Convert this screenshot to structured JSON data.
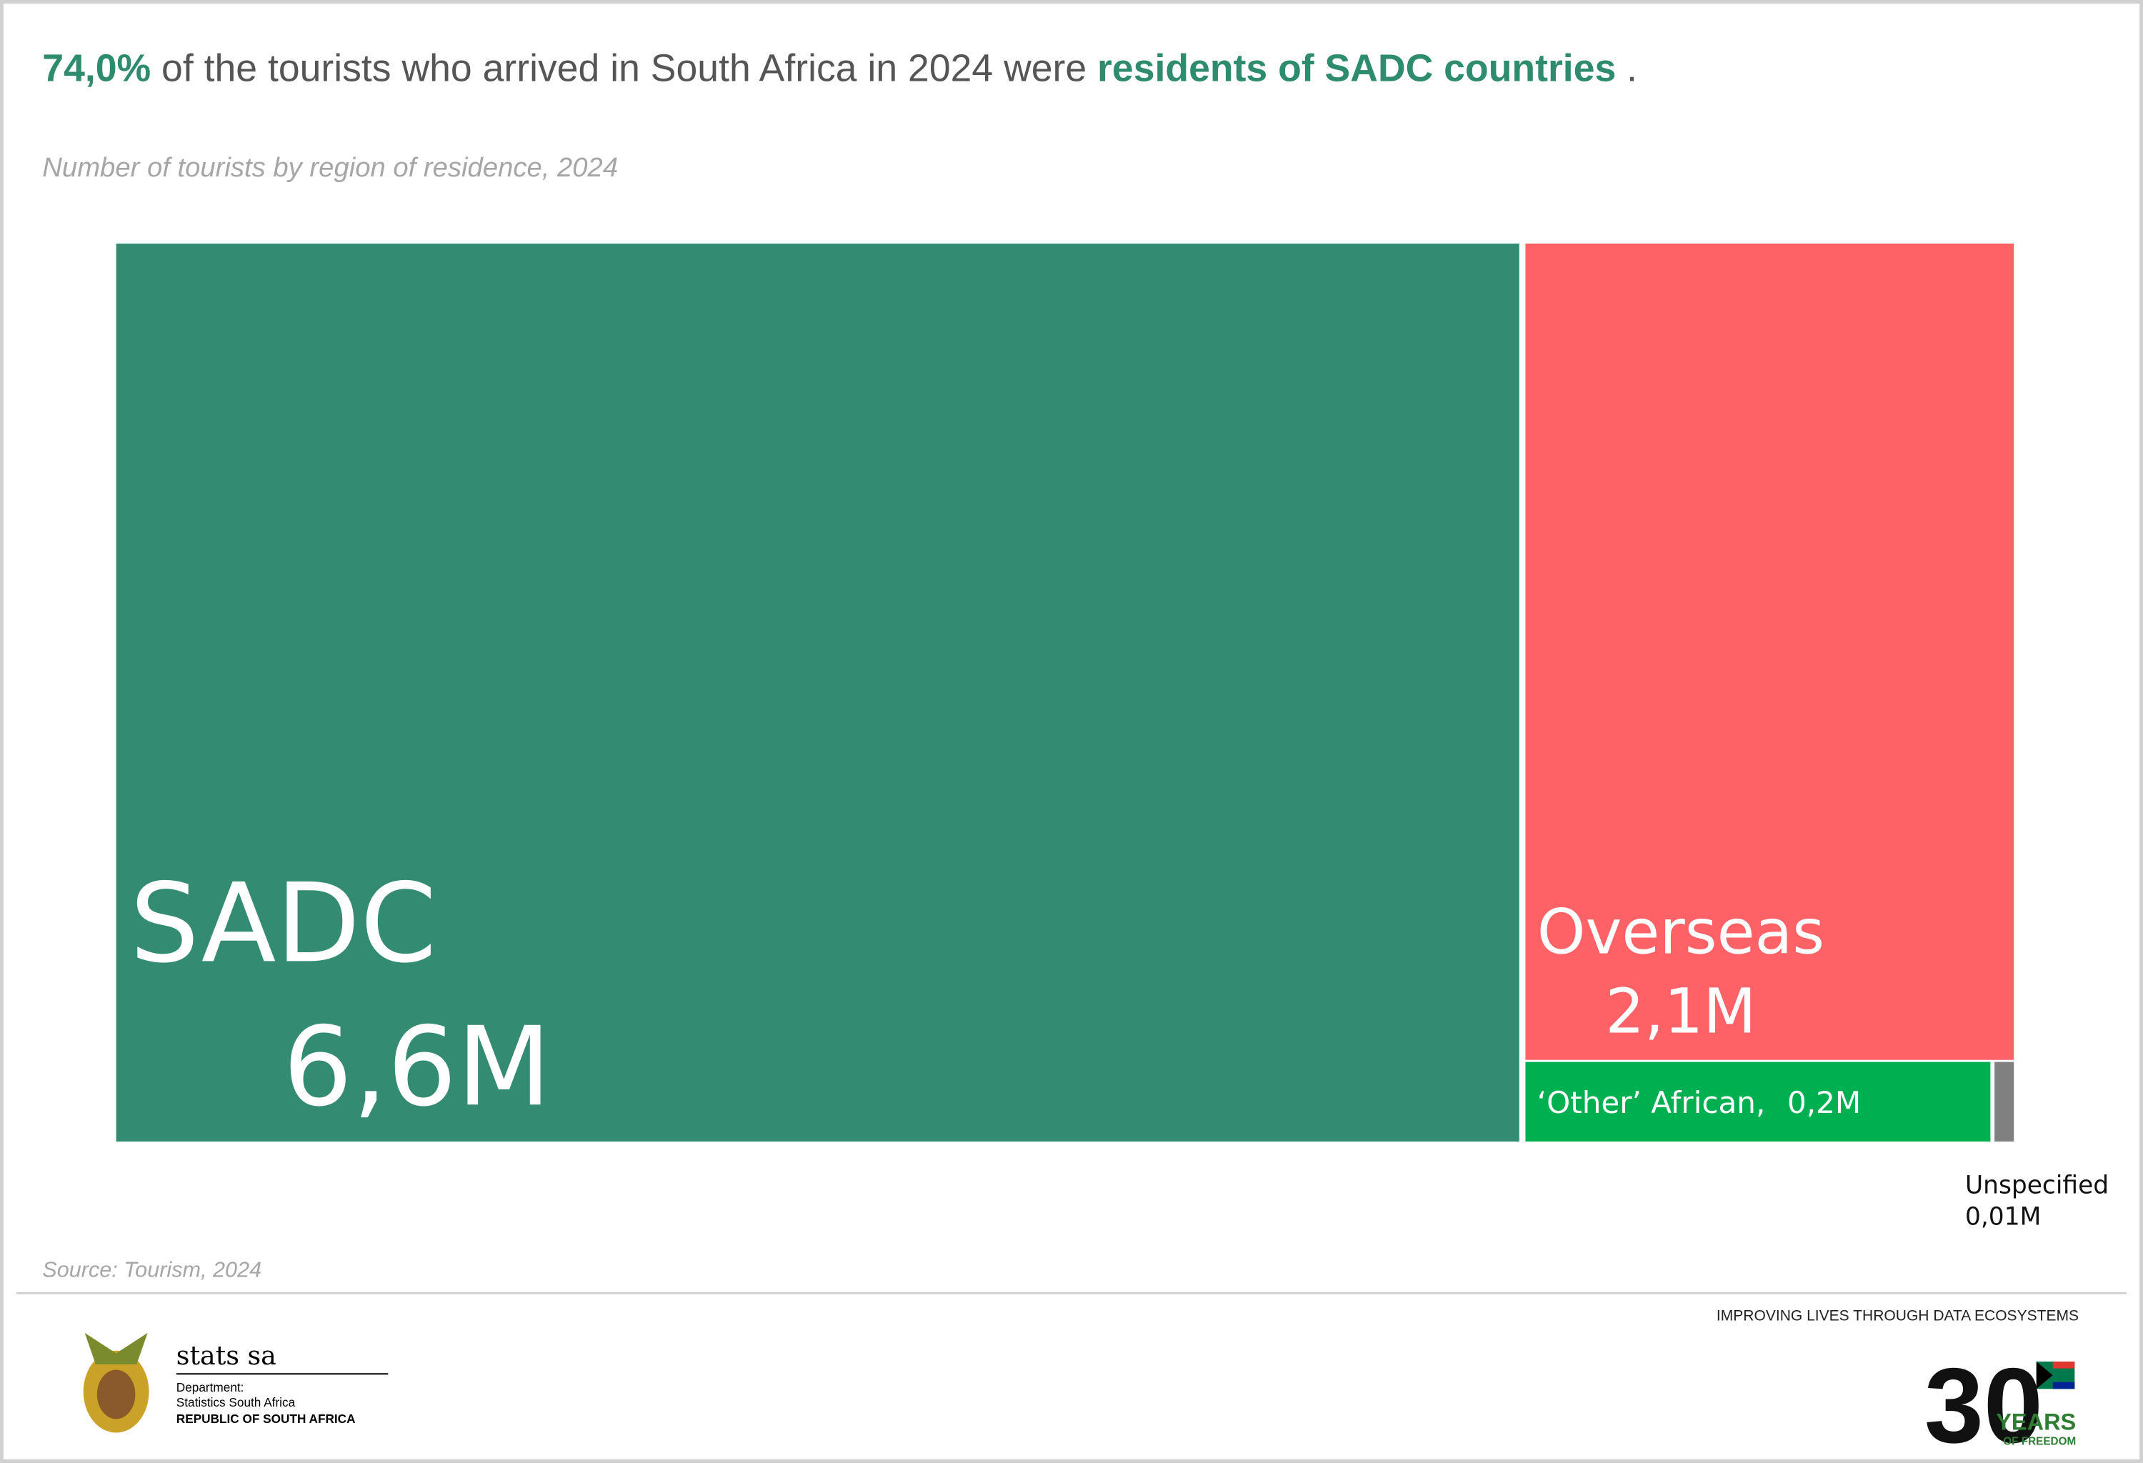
{
  "chart_data": {
    "type": "treemap",
    "title_parts": [
      "74,0%",
      " of the tourists who arrived in South Africa in 2024 were ",
      "residents of SADC countries",
      " ."
    ],
    "subtitle": "Number of tourists by region of residence, 2024",
    "categories": [
      "SADC",
      "Overseas",
      "‘Other’ African,",
      "Unspecified"
    ],
    "values": [
      6.6,
      2.1,
      0.2,
      0.01
    ],
    "value_labels": [
      "6,6M",
      "2,1M",
      "0,2M",
      "0,01M"
    ],
    "colors": [
      "#338b71",
      "#ff6266",
      "#00b050",
      "#808080"
    ],
    "source": "Source:  Tourism, 2024"
  },
  "footer": {
    "brand": "stats sa",
    "department": "Department:",
    "agency": "Statistics South Africa",
    "country": "REPUBLIC OF SOUTH AFRICA",
    "slogan": "IMPROVING LIVES THROUGH DATA ECOSYSTEMS",
    "anniversary": "30",
    "years": "YEARS",
    "freedom": "OF FREEDOM"
  }
}
